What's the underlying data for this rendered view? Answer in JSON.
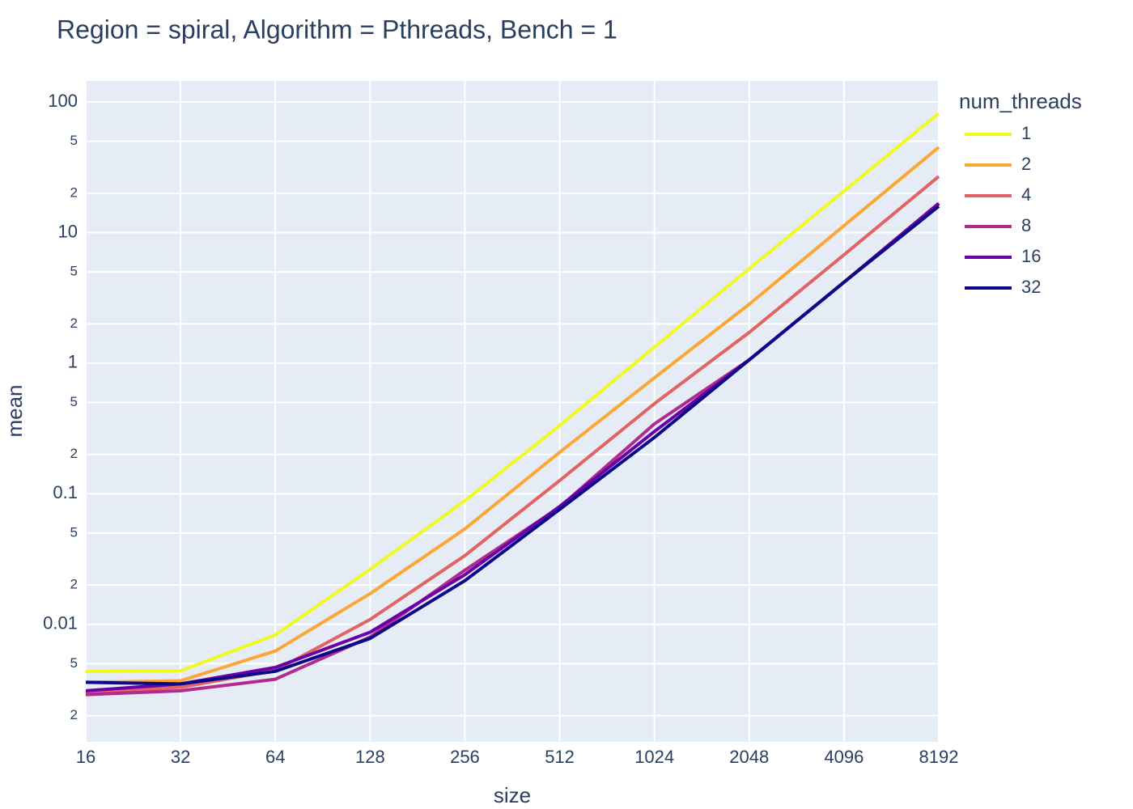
{
  "chart_data": {
    "type": "line",
    "title": "Region = spiral, Algorithm = Pthreads, Bench = 1",
    "x_label": "size",
    "y_label": "mean",
    "legend_title": "num_threads",
    "x": [
      16,
      32,
      64,
      128,
      256,
      512,
      1024,
      2048,
      4096,
      8192
    ],
    "xscale": "log",
    "yscale": "log",
    "xlim": [
      16,
      8192
    ],
    "xticks": [
      16,
      32,
      64,
      128,
      256,
      512,
      1024,
      2048,
      4096,
      8192
    ],
    "ylim": [
      0.00126,
      145
    ],
    "yticks": [
      {
        "value": 0.002,
        "label": "2"
      },
      {
        "value": 0.005,
        "label": "5"
      },
      0.01,
      {
        "value": 0.02,
        "label": "2"
      },
      {
        "value": 0.05,
        "label": "5"
      },
      0.1,
      {
        "value": 0.2,
        "label": "2"
      },
      {
        "value": 0.5,
        "label": "5"
      },
      1,
      {
        "value": 2,
        "label": "2"
      },
      {
        "value": 5,
        "label": "5"
      },
      10,
      {
        "value": 20,
        "label": "2"
      },
      {
        "value": 50,
        "label": "5"
      },
      100
    ],
    "grid": true,
    "legend_position": "right",
    "series": [
      {
        "name": "1",
        "color": "#f0f921",
        "values": [
          0.00437,
          0.0044,
          0.0083,
          0.0264,
          0.0885,
          0.333,
          1.33,
          5.3,
          20.8,
          81.9
        ]
      },
      {
        "name": "2",
        "color": "#fca636",
        "values": [
          0.0036,
          0.0037,
          0.00625,
          0.0172,
          0.0538,
          0.208,
          0.774,
          2.83,
          11.3,
          45
        ]
      },
      {
        "name": "4",
        "color": "#e16462",
        "values": [
          0.00298,
          0.0033,
          0.00444,
          0.0109,
          0.0336,
          0.1265,
          0.49,
          1.72,
          6.76,
          26.9
        ]
      },
      {
        "name": "8",
        "color": "#b12a90",
        "values": [
          0.0029,
          0.0031,
          0.0038,
          0.008,
          0.026,
          0.079,
          0.343,
          1.06,
          4.17,
          16.8
        ]
      },
      {
        "name": "16",
        "color": "#6a00a8",
        "values": [
          0.0031,
          0.0035,
          0.00468,
          0.0087,
          0.024,
          0.08,
          0.3,
          1.06,
          4.17,
          16.6
        ]
      },
      {
        "name": "32",
        "color": "#0d0887",
        "values": [
          0.0036,
          0.0035,
          0.00437,
          0.0078,
          0.0216,
          0.076,
          0.27,
          1.06,
          4.17,
          15.9
        ]
      }
    ]
  }
}
